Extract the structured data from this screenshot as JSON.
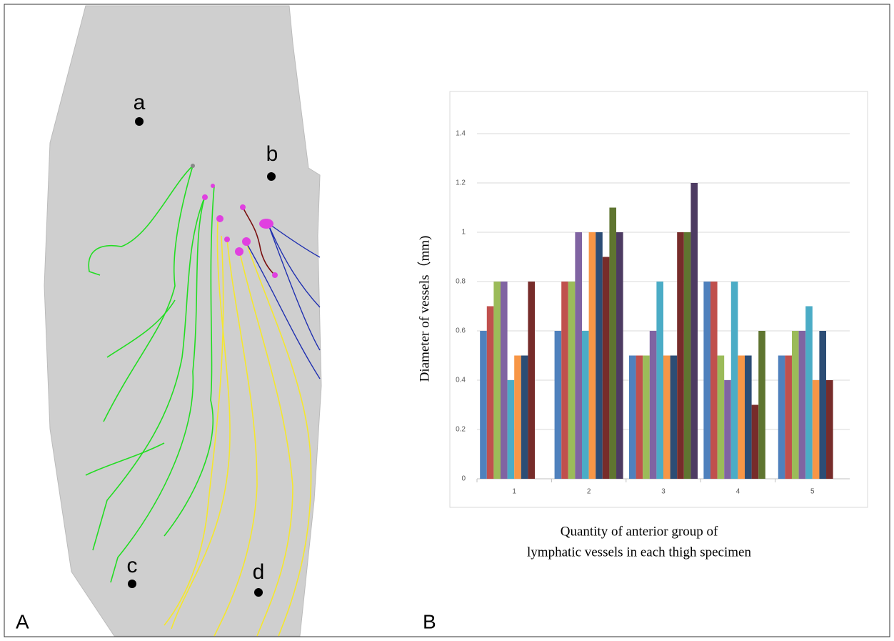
{
  "figure": {
    "panel_labels": [
      "A",
      "B"
    ],
    "points": [
      "a",
      "b",
      "c",
      "d"
    ]
  },
  "chart_data": {
    "type": "bar",
    "ylabel": "Diameter of vessels（mm)",
    "xlabel": [
      "Quantity of anterior group of",
      "lymphatic vessels in each thigh specimen"
    ],
    "categories": [
      "1",
      "2",
      "3",
      "4",
      "5"
    ],
    "series": [
      {
        "color": "#4f81bd",
        "values": [
          0.6,
          0.6,
          0.5,
          0.8,
          0.5
        ]
      },
      {
        "color": "#c0504d",
        "values": [
          0.7,
          0.8,
          0.5,
          0.8,
          0.5
        ]
      },
      {
        "color": "#9bbb59",
        "values": [
          0.8,
          0.8,
          0.5,
          0.5,
          0.6
        ]
      },
      {
        "color": "#8064a2",
        "values": [
          0.8,
          1.0,
          0.6,
          0.4,
          0.6
        ]
      },
      {
        "color": "#4bacc6",
        "values": [
          0.4,
          0.6,
          0.8,
          0.8,
          0.7
        ]
      },
      {
        "color": "#f79646",
        "values": [
          0.5,
          1.0,
          0.5,
          0.5,
          0.4
        ]
      },
      {
        "color": "#2c4d75",
        "values": [
          0.5,
          1.0,
          0.5,
          0.5,
          0.6
        ]
      },
      {
        "color": "#772c2a",
        "values": [
          0.8,
          0.9,
          1.0,
          0.3,
          0.4
        ]
      },
      {
        "color": "#5f7530",
        "values": [
          null,
          1.1,
          1.0,
          0.6,
          null
        ]
      },
      {
        "color": "#4d3b62",
        "values": [
          null,
          1.0,
          1.2,
          null,
          null
        ]
      }
    ],
    "ylim": [
      0,
      1.4
    ],
    "yticks": [
      0,
      0.2,
      0.4,
      0.6,
      0.8,
      1,
      1.2,
      1.4
    ],
    "grid": true
  }
}
